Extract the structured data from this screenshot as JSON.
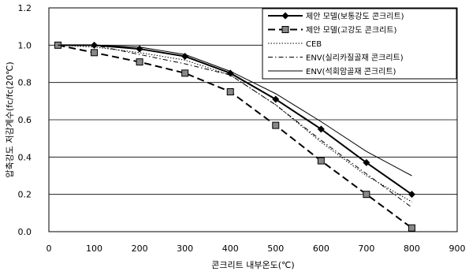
{
  "chart_data": {
    "type": "line",
    "xlabel": "콘크리트 내부온도(℃)",
    "ylabel": "압축강도 저감계수(fc/fc(20℃)",
    "xlim": [
      0,
      900
    ],
    "ylim": [
      0.0,
      1.2
    ],
    "x_ticks": [
      "0",
      "100",
      "200",
      "300",
      "400",
      "500",
      "600",
      "700",
      "800",
      "900"
    ],
    "y_ticks": [
      "0.0",
      "0.2",
      "0.4",
      "0.6",
      "0.8",
      "1.0",
      "1.2"
    ],
    "grid": "horizontal",
    "legend_position": "top-right",
    "series": [
      {
        "name": "제안 모델(보통강도 콘크리트)",
        "style": "solid-thick",
        "marker": "diamond",
        "color": "#000000",
        "points": [
          [
            20,
            1.0
          ],
          [
            100,
            1.0
          ],
          [
            200,
            0.98
          ],
          [
            300,
            0.94
          ],
          [
            400,
            0.85
          ],
          [
            500,
            0.71
          ],
          [
            600,
            0.55
          ],
          [
            700,
            0.37
          ],
          [
            800,
            0.2
          ]
        ]
      },
      {
        "name": "제안 모델(고강도 콘크리트)",
        "style": "dashed-thick",
        "marker": "square",
        "color": "#000000",
        "points": [
          [
            20,
            1.0
          ],
          [
            100,
            0.96
          ],
          [
            200,
            0.91
          ],
          [
            300,
            0.85
          ],
          [
            400,
            0.75
          ],
          [
            500,
            0.57
          ],
          [
            600,
            0.38
          ],
          [
            700,
            0.2
          ],
          [
            800,
            0.02
          ]
        ]
      },
      {
        "name": "CEB",
        "style": "dotted",
        "marker": "none",
        "color": "#000000",
        "points": [
          [
            20,
            1.0
          ],
          [
            100,
            0.99
          ],
          [
            200,
            0.96
          ],
          [
            300,
            0.92
          ],
          [
            400,
            0.84
          ],
          [
            500,
            0.68
          ],
          [
            600,
            0.48
          ],
          [
            700,
            0.3
          ],
          [
            800,
            0.16
          ]
        ]
      },
      {
        "name": "ENV(실리카질골재 콘크리트)",
        "style": "dashdot",
        "marker": "none",
        "color": "#000000",
        "points": [
          [
            20,
            1.0
          ],
          [
            100,
            1.0
          ],
          [
            200,
            0.95
          ],
          [
            300,
            0.9
          ],
          [
            400,
            0.84
          ],
          [
            500,
            0.68
          ],
          [
            600,
            0.49
          ],
          [
            700,
            0.31
          ],
          [
            800,
            0.13
          ]
        ]
      },
      {
        "name": "ENV(석회암골재 콘크리트)",
        "style": "solid-thin",
        "marker": "none",
        "color": "#000000",
        "points": [
          [
            20,
            1.0
          ],
          [
            100,
            1.0
          ],
          [
            200,
            0.99
          ],
          [
            300,
            0.95
          ],
          [
            400,
            0.86
          ],
          [
            500,
            0.74
          ],
          [
            600,
            0.59
          ],
          [
            700,
            0.43
          ],
          [
            800,
            0.3
          ]
        ]
      }
    ]
  }
}
